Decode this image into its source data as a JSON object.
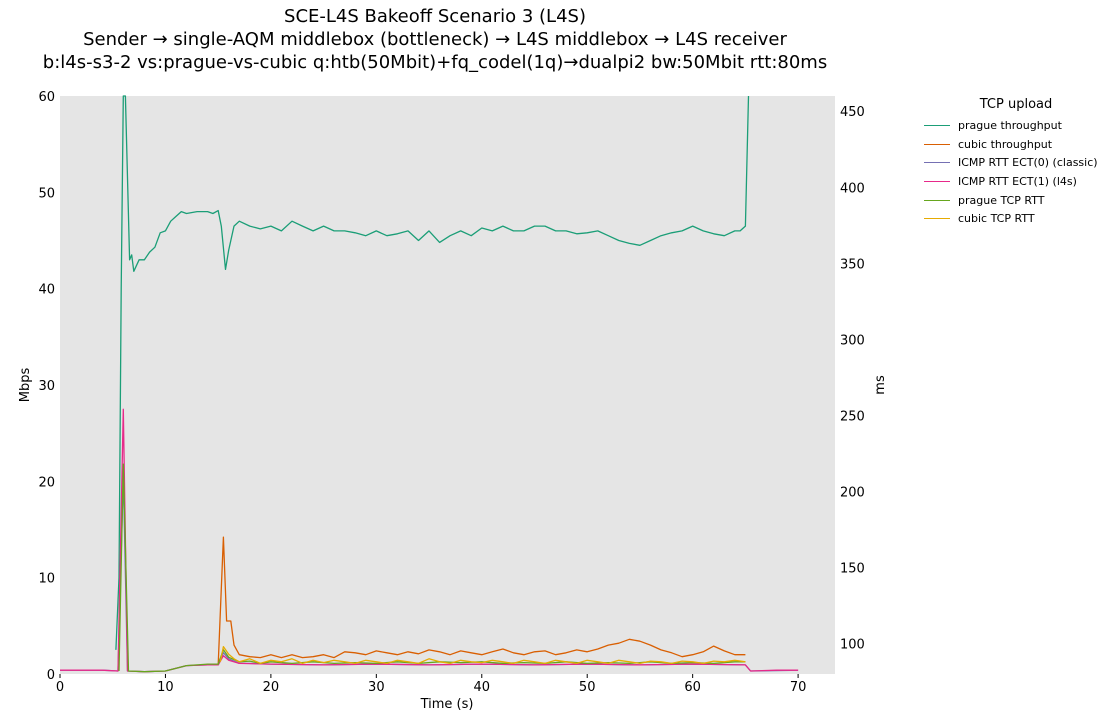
{
  "title_lines": [
    "SCE-L4S Bakeoff Scenario 3 (L4S)",
    "Sender → single-AQM middlebox (bottleneck) → L4S middlebox → L4S receiver",
    "b:l4s-s3-2 vs:prague-vs-cubic q:htb(50Mbit)+fq_codel(1q)→dualpi2 bw:50Mbit rtt:80ms"
  ],
  "chart_data": {
    "type": "line",
    "title": "SCE-L4S Bakeoff Scenario 3 (L4S)",
    "xlabel": "Time (s)",
    "ylabel": "Mbps",
    "y2label": "ms",
    "xlim": [
      0,
      73.5
    ],
    "ylim": [
      0,
      60
    ],
    "y2lim": [
      80,
      460
    ],
    "x_ticks": [
      0,
      10,
      20,
      30,
      40,
      50,
      60,
      70
    ],
    "y_ticks": [
      0,
      10,
      20,
      30,
      40,
      50,
      60
    ],
    "y2_ticks": [
      100,
      150,
      200,
      250,
      300,
      350,
      400,
      450
    ],
    "grid": false,
    "background": "#e5e5e5",
    "legend": {
      "title": "TCP upload",
      "placement": "outside-right"
    },
    "series": [
      {
        "name": "prague throughput",
        "axis": "left",
        "color": "#1b9e77",
        "points": [
          [
            5.3,
            2.5
          ],
          [
            5.6,
            10
          ],
          [
            5.8,
            40
          ],
          [
            6.0,
            62
          ],
          [
            6.2,
            62
          ],
          [
            6.6,
            43
          ],
          [
            6.8,
            43.5
          ],
          [
            7.0,
            41.8
          ],
          [
            7.5,
            43
          ],
          [
            8,
            43
          ],
          [
            8.5,
            43.8
          ],
          [
            9,
            44.3
          ],
          [
            9.5,
            45.8
          ],
          [
            10,
            46
          ],
          [
            10.5,
            47
          ],
          [
            11,
            47.5
          ],
          [
            11.5,
            48
          ],
          [
            12,
            47.8
          ],
          [
            13,
            48
          ],
          [
            14,
            48
          ],
          [
            14.5,
            47.8
          ],
          [
            15,
            48.1
          ],
          [
            15.3,
            46.5
          ],
          [
            15.7,
            42
          ],
          [
            16,
            44
          ],
          [
            16.5,
            46.5
          ],
          [
            17,
            47
          ],
          [
            18,
            46.5
          ],
          [
            19,
            46.2
          ],
          [
            20,
            46.5
          ],
          [
            21,
            46
          ],
          [
            22,
            47
          ],
          [
            23,
            46.5
          ],
          [
            24,
            46
          ],
          [
            25,
            46.5
          ],
          [
            26,
            46
          ],
          [
            27,
            46
          ],
          [
            28,
            45.8
          ],
          [
            29,
            45.5
          ],
          [
            30,
            46
          ],
          [
            31,
            45.5
          ],
          [
            32,
            45.7
          ],
          [
            33,
            46
          ],
          [
            34,
            45
          ],
          [
            35,
            46
          ],
          [
            36,
            44.8
          ],
          [
            37,
            45.5
          ],
          [
            38,
            46
          ],
          [
            39,
            45.5
          ],
          [
            40,
            46.3
          ],
          [
            41,
            46
          ],
          [
            42,
            46.5
          ],
          [
            43,
            46
          ],
          [
            44,
            46
          ],
          [
            45,
            46.5
          ],
          [
            46,
            46.5
          ],
          [
            47,
            46
          ],
          [
            48,
            46
          ],
          [
            49,
            45.7
          ],
          [
            50,
            45.8
          ],
          [
            51,
            46
          ],
          [
            52,
            45.5
          ],
          [
            53,
            45
          ],
          [
            54,
            44.7
          ],
          [
            55,
            44.5
          ],
          [
            56,
            45
          ],
          [
            57,
            45.5
          ],
          [
            58,
            45.8
          ],
          [
            59,
            46
          ],
          [
            60,
            46.5
          ],
          [
            61,
            46
          ],
          [
            62,
            45.7
          ],
          [
            63,
            45.5
          ],
          [
            64,
            46
          ],
          [
            64.5,
            46
          ],
          [
            65,
            46.5
          ],
          [
            65.3,
            62
          ]
        ]
      },
      {
        "name": "cubic throughput",
        "axis": "left",
        "color": "#d95f02",
        "points": [
          [
            15.0,
            1
          ],
          [
            15.5,
            14.2
          ],
          [
            15.8,
            5.5
          ],
          [
            16.2,
            5.5
          ],
          [
            16.5,
            3
          ],
          [
            17,
            2
          ],
          [
            18,
            1.8
          ],
          [
            19,
            1.7
          ],
          [
            20,
            2
          ],
          [
            21,
            1.7
          ],
          [
            22,
            2
          ],
          [
            23,
            1.7
          ],
          [
            24,
            1.8
          ],
          [
            25,
            2
          ],
          [
            26,
            1.7
          ],
          [
            27,
            2.3
          ],
          [
            28,
            2.2
          ],
          [
            29,
            2
          ],
          [
            30,
            2.4
          ],
          [
            31,
            2.2
          ],
          [
            32,
            2
          ],
          [
            33,
            2.3
          ],
          [
            34,
            2.1
          ],
          [
            35,
            2.5
          ],
          [
            36,
            2.3
          ],
          [
            37,
            2
          ],
          [
            38,
            2.4
          ],
          [
            39,
            2.2
          ],
          [
            40,
            2
          ],
          [
            41,
            2.3
          ],
          [
            42,
            2.6
          ],
          [
            43,
            2.2
          ],
          [
            44,
            2
          ],
          [
            45,
            2.3
          ],
          [
            46,
            2.4
          ],
          [
            47,
            2
          ],
          [
            48,
            2.2
          ],
          [
            49,
            2.5
          ],
          [
            50,
            2.3
          ],
          [
            51,
            2.6
          ],
          [
            52,
            3
          ],
          [
            53,
            3.2
          ],
          [
            54,
            3.6
          ],
          [
            55,
            3.4
          ],
          [
            56,
            3
          ],
          [
            57,
            2.5
          ],
          [
            58,
            2.2
          ],
          [
            59,
            1.8
          ],
          [
            60,
            2
          ],
          [
            61,
            2.3
          ],
          [
            62,
            2.9
          ],
          [
            63,
            2.4
          ],
          [
            64,
            2
          ],
          [
            65,
            2
          ]
        ]
      },
      {
        "name": "ICMP RTT ECT(0) (classic)",
        "axis": "right",
        "color": "#7570b3",
        "points": [
          [
            0,
            82.5
          ],
          [
            2,
            82.5
          ],
          [
            4,
            82.5
          ],
          [
            5.5,
            82
          ],
          [
            6.0,
            210
          ],
          [
            6.4,
            82
          ],
          [
            8,
            81.5
          ],
          [
            10,
            82
          ],
          [
            12,
            85.5
          ],
          [
            14,
            86
          ],
          [
            15,
            86
          ],
          [
            15.5,
            94
          ],
          [
            16,
            90
          ],
          [
            17,
            87
          ],
          [
            18,
            87
          ],
          [
            20,
            86.5
          ],
          [
            25,
            86
          ],
          [
            30,
            86.5
          ],
          [
            35,
            86
          ],
          [
            40,
            86.5
          ],
          [
            45,
            86
          ],
          [
            50,
            86.5
          ],
          [
            55,
            86
          ],
          [
            60,
            86.5
          ],
          [
            65,
            86
          ],
          [
            65.5,
            82
          ],
          [
            70,
            82.5
          ]
        ]
      },
      {
        "name": "ICMP RTT ECT(1) (l4s)",
        "axis": "right",
        "color": "#e7298a",
        "points": [
          [
            0,
            82.5
          ],
          [
            2,
            82.5
          ],
          [
            4,
            82.5
          ],
          [
            5.5,
            82
          ],
          [
            6.0,
            254
          ],
          [
            6.4,
            82
          ],
          [
            8,
            81.5
          ],
          [
            10,
            82
          ],
          [
            12,
            85.5
          ],
          [
            14,
            86
          ],
          [
            15,
            86
          ],
          [
            15.5,
            92
          ],
          [
            16,
            89
          ],
          [
            17,
            87
          ],
          [
            20,
            86.5
          ],
          [
            25,
            86
          ],
          [
            30,
            86.5
          ],
          [
            35,
            86
          ],
          [
            40,
            86.5
          ],
          [
            45,
            86
          ],
          [
            50,
            86.5
          ],
          [
            55,
            86
          ],
          [
            60,
            86.5
          ],
          [
            65,
            86
          ],
          [
            65.5,
            82
          ],
          [
            68,
            82.5
          ],
          [
            70,
            82.5
          ]
        ]
      },
      {
        "name": "prague TCP RTT",
        "axis": "right",
        "color": "#66a61e",
        "points": [
          [
            5.6,
            82
          ],
          [
            6.0,
            218
          ],
          [
            6.5,
            82
          ],
          [
            8,
            81.5
          ],
          [
            10,
            82
          ],
          [
            12,
            85.5
          ],
          [
            14,
            86.5
          ],
          [
            15,
            86.5
          ],
          [
            15.5,
            96
          ],
          [
            16,
            91
          ],
          [
            17,
            88
          ],
          [
            18,
            88.5
          ],
          [
            19,
            87
          ],
          [
            20,
            88
          ],
          [
            22,
            87
          ],
          [
            24,
            88
          ],
          [
            26,
            87
          ],
          [
            28,
            87.5
          ],
          [
            30,
            87
          ],
          [
            32,
            88
          ],
          [
            34,
            87
          ],
          [
            36,
            88
          ],
          [
            38,
            87.5
          ],
          [
            40,
            88
          ],
          [
            42,
            87
          ],
          [
            44,
            87.5
          ],
          [
            46,
            87
          ],
          [
            48,
            88
          ],
          [
            50,
            87
          ],
          [
            52,
            87.5
          ],
          [
            54,
            87
          ],
          [
            56,
            88
          ],
          [
            58,
            87
          ],
          [
            60,
            87.5
          ],
          [
            62,
            87
          ],
          [
            64,
            88
          ],
          [
            65,
            88
          ]
        ]
      },
      {
        "name": "cubic TCP RTT",
        "axis": "right",
        "color": "#e6ab02",
        "points": [
          [
            15.2,
            88
          ],
          [
            15.5,
            98
          ],
          [
            16,
            93
          ],
          [
            16.5,
            90
          ],
          [
            17,
            88
          ],
          [
            18,
            90
          ],
          [
            19,
            87
          ],
          [
            20,
            89
          ],
          [
            21,
            88
          ],
          [
            22,
            90
          ],
          [
            23,
            87
          ],
          [
            24,
            89
          ],
          [
            25,
            87.5
          ],
          [
            26,
            89
          ],
          [
            27,
            88
          ],
          [
            28,
            87
          ],
          [
            29,
            89
          ],
          [
            30,
            88
          ],
          [
            31,
            87
          ],
          [
            32,
            89
          ],
          [
            33,
            88
          ],
          [
            34,
            87
          ],
          [
            35,
            90
          ],
          [
            36,
            88
          ],
          [
            37,
            87
          ],
          [
            38,
            89
          ],
          [
            39,
            88
          ],
          [
            40,
            87.5
          ],
          [
            41,
            89
          ],
          [
            42,
            88
          ],
          [
            43,
            87
          ],
          [
            44,
            89
          ],
          [
            45,
            88
          ],
          [
            46,
            87
          ],
          [
            47,
            89
          ],
          [
            48,
            88
          ],
          [
            49,
            87
          ],
          [
            50,
            89
          ],
          [
            51,
            88
          ],
          [
            52,
            87
          ],
          [
            53,
            89
          ],
          [
            54,
            88
          ],
          [
            55,
            87
          ],
          [
            56,
            88.5
          ],
          [
            57,
            88
          ],
          [
            58,
            87
          ],
          [
            59,
            88.5
          ],
          [
            60,
            88
          ],
          [
            61,
            87
          ],
          [
            62,
            88.5
          ],
          [
            63,
            88
          ],
          [
            64,
            89
          ],
          [
            65,
            88
          ]
        ]
      }
    ]
  }
}
